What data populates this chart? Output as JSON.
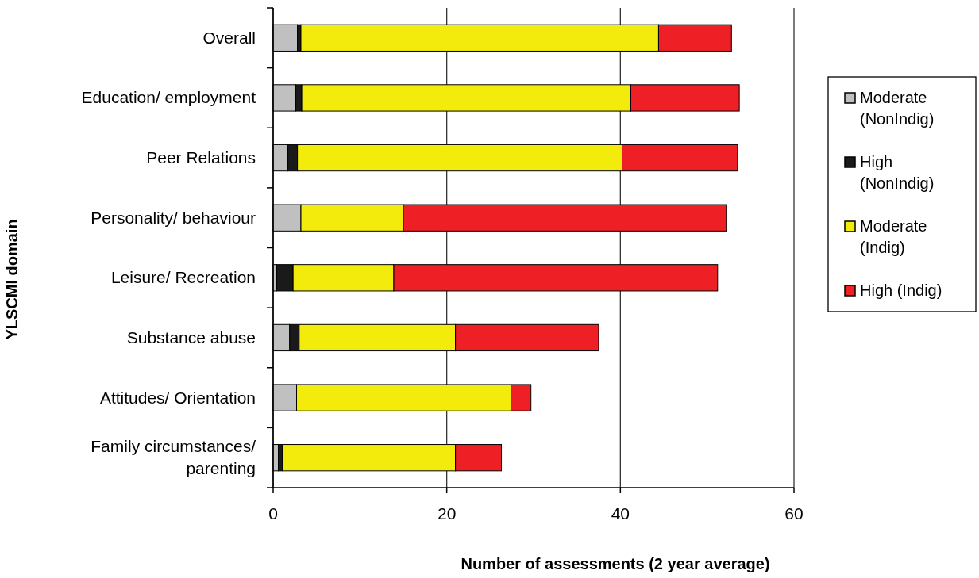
{
  "chart_data": {
    "type": "bar",
    "orientation": "horizontal",
    "stacked": true,
    "xlabel": "Number of assessments (2 year average)",
    "ylabel": "YLSCMI domain",
    "categories": [
      "Overall",
      "Education/ employment",
      "Peer Relations",
      "Personality/ behaviour",
      "Leisure/ Recreation",
      "Substance abuse",
      "Attitudes/ Orientation",
      "Family circumstances/ parenting"
    ],
    "series": [
      {
        "name": "Moderate (NonIndig)",
        "color": "#c0c0c0",
        "values": [
          2.8,
          2.6,
          1.7,
          3.2,
          0.4,
          1.9,
          2.7,
          0.6
        ]
      },
      {
        "name": "High (NonIndig)",
        "color": "#1a1a1a",
        "values": [
          0.4,
          0.7,
          1.1,
          0,
          1.9,
          1.1,
          0,
          0.5
        ]
      },
      {
        "name": "Moderate (Indig)",
        "color": "#f2eb0c",
        "values": [
          41.2,
          37.9,
          37.4,
          11.8,
          11.6,
          18.0,
          24.7,
          19.9
        ]
      },
      {
        "name": "High (Indig)",
        "color": "#ee1f25",
        "values": [
          8.4,
          12.5,
          13.3,
          37.2,
          37.3,
          16.5,
          2.3,
          5.3
        ]
      }
    ],
    "xlim": [
      0,
      60
    ],
    "xticks": [
      0,
      20,
      40,
      60
    ],
    "grid": "x",
    "legend": "right"
  }
}
